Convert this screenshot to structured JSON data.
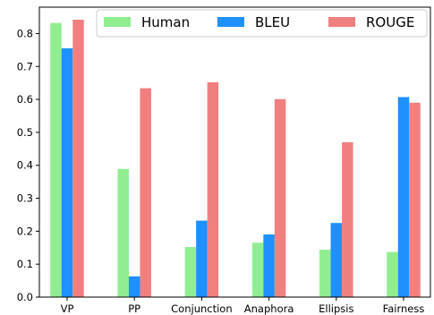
{
  "chart_data": {
    "type": "bar",
    "categories": [
      "VP",
      "PP",
      "Conjunction",
      "Anaphora",
      "Ellipsis",
      "Fairness"
    ],
    "series": [
      {
        "name": "Human",
        "color": "#90ee90",
        "values": [
          0.832,
          0.389,
          0.152,
          0.165,
          0.144,
          0.137
        ]
      },
      {
        "name": "BLEU",
        "color": "#1e90ff",
        "values": [
          0.755,
          0.063,
          0.232,
          0.19,
          0.225,
          0.607
        ]
      },
      {
        "name": "ROUGE",
        "color": "#f08080",
        "values": [
          0.842,
          0.634,
          0.652,
          0.601,
          0.47,
          0.59
        ]
      }
    ],
    "yticks": [
      "0.0",
      "0.1",
      "0.2",
      "0.3",
      "0.4",
      "0.5",
      "0.6",
      "0.7",
      "0.8"
    ],
    "ylim": [
      0,
      0.88
    ],
    "xlabel": "",
    "ylabel": "",
    "title": "",
    "legend_position": "top",
    "grid": false
  }
}
